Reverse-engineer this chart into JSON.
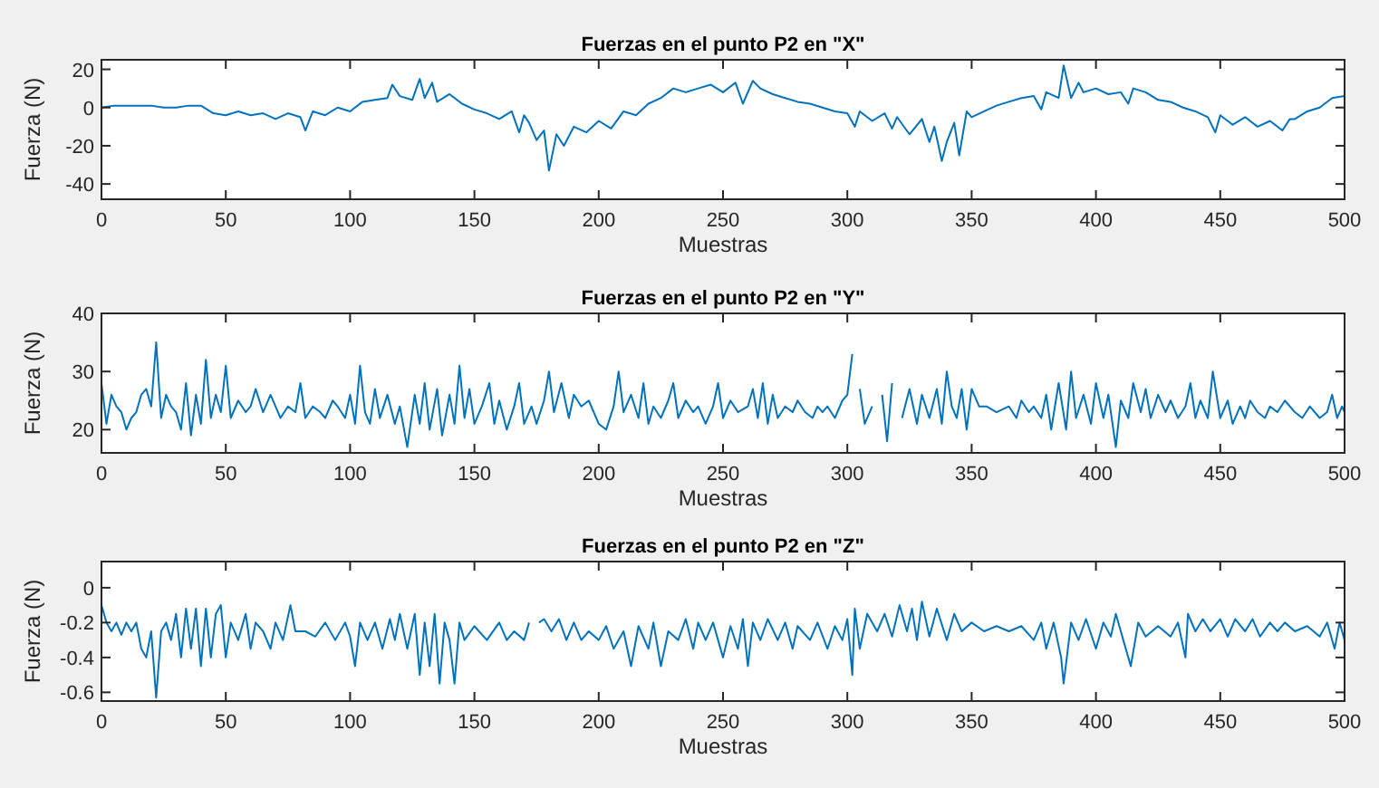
{
  "chart_data": [
    {
      "type": "line",
      "title": "Fuerzas en el punto P2 en \"X\"",
      "xlabel": "Muestras",
      "ylabel": "Fuerza (N)",
      "xlim": [
        0,
        500
      ],
      "xticks": [
        0,
        50,
        100,
        150,
        200,
        250,
        300,
        350,
        400,
        450,
        500
      ],
      "ylim": [
        -48,
        25
      ],
      "yticks": [
        -40,
        -20,
        0,
        20
      ],
      "grid": false,
      "marker": "none",
      "line_style": "solid",
      "series": [
        {
          "color": "#0072bd",
          "x": [
            0,
            5,
            10,
            15,
            20,
            25,
            30,
            35,
            40,
            45,
            50,
            55,
            60,
            65,
            70,
            75,
            80,
            82,
            85,
            90,
            95,
            100,
            105,
            110,
            115,
            117,
            120,
            125,
            128,
            130,
            133,
            135,
            140,
            145,
            150,
            155,
            160,
            165,
            168,
            170,
            172,
            175,
            178,
            180,
            183,
            186,
            190,
            195,
            200,
            205,
            210,
            215,
            220,
            225,
            230,
            235,
            240,
            245,
            250,
            255,
            258,
            262,
            265,
            270,
            275,
            280,
            285,
            290,
            295,
            300,
            303,
            305,
            310,
            315,
            318,
            320,
            325,
            330,
            333,
            335,
            338,
            340,
            343,
            345,
            348,
            350,
            355,
            360,
            365,
            370,
            375,
            378,
            380,
            385,
            387,
            390,
            393,
            395,
            400,
            405,
            410,
            413,
            415,
            420,
            425,
            430,
            435,
            440,
            445,
            448,
            450,
            455,
            460,
            465,
            470,
            475,
            478,
            480,
            485,
            490,
            495,
            500
          ],
          "values": [
            0,
            1,
            1,
            1,
            1,
            0,
            0,
            1,
            1,
            -3,
            -4,
            -2,
            -4,
            -3,
            -6,
            -3,
            -5,
            -12,
            -2,
            -4,
            0,
            -2,
            3,
            4,
            5,
            12,
            6,
            4,
            15,
            5,
            13,
            3,
            7,
            2,
            -1,
            -3,
            -6,
            -2,
            -13,
            -4,
            -8,
            -17,
            -12,
            -33,
            -14,
            -20,
            -10,
            -13,
            -7,
            -11,
            -2,
            -4,
            2,
            5,
            10,
            8,
            10,
            12,
            8,
            13,
            2,
            14,
            10,
            7,
            5,
            3,
            2,
            0,
            -2,
            -3,
            -10,
            -2,
            -7,
            -3,
            -11,
            -5,
            -14,
            -6,
            -18,
            -10,
            -28,
            -18,
            -8,
            -25,
            -2,
            -5,
            -2,
            1,
            3,
            5,
            6,
            -1,
            8,
            5,
            22,
            5,
            13,
            8,
            10,
            7,
            8,
            2,
            10,
            8,
            4,
            3,
            0,
            -2,
            -5,
            -13,
            -4,
            -9,
            -5,
            -10,
            -7,
            -12,
            -6,
            -6,
            -2,
            0,
            5,
            6
          ]
        }
      ]
    },
    {
      "type": "line",
      "title": "Fuerzas en el punto P2 en \"Y\"",
      "xlabel": "Muestras",
      "ylabel": "Fuerza (N)",
      "xlim": [
        0,
        500
      ],
      "xticks": [
        0,
        50,
        100,
        150,
        200,
        250,
        300,
        350,
        400,
        450,
        500
      ],
      "ylim": [
        16,
        40
      ],
      "yticks": [
        20,
        30,
        40
      ],
      "grid": false,
      "marker": "none",
      "line_style": "solid",
      "series": [
        {
          "color": "#0072bd",
          "x": [
            0,
            2,
            4,
            6,
            8,
            10,
            12,
            14,
            16,
            18,
            20,
            22,
            24,
            26,
            28,
            30,
            32,
            34,
            36,
            38,
            40,
            42,
            44,
            46,
            48,
            50,
            52,
            55,
            58,
            60,
            62,
            65,
            68,
            70,
            72,
            75,
            78,
            80,
            82,
            85,
            88,
            90,
            93,
            95,
            98,
            100,
            102,
            104,
            106,
            108,
            110,
            112,
            115,
            118,
            120,
            123,
            126,
            128,
            130,
            132,
            135,
            137,
            140,
            142,
            144,
            146,
            148,
            150,
            153,
            156,
            158,
            160,
            163,
            166,
            168,
            170,
            173,
            175,
            178,
            180,
            182,
            185,
            188,
            190,
            193,
            196,
            200,
            203,
            206,
            208,
            210,
            213,
            216,
            218,
            220,
            222,
            225,
            228,
            230,
            232,
            235,
            238,
            240,
            243,
            246,
            248,
            250,
            253,
            256,
            260,
            262,
            264,
            266,
            268,
            270,
            272,
            275,
            278,
            280,
            283,
            286,
            288,
            290,
            292,
            295,
            298,
            300,
            302,
            303,
            305,
            307,
            310,
            312,
            314,
            316,
            318,
            320,
            322,
            325,
            328,
            330,
            333,
            336,
            338,
            340,
            342,
            344,
            346,
            348,
            350,
            353,
            356,
            360,
            365,
            368,
            370,
            373,
            375,
            378,
            380,
            382,
            385,
            388,
            390,
            392,
            395,
            398,
            400,
            403,
            405,
            408,
            410,
            413,
            415,
            418,
            420,
            422,
            425,
            428,
            430,
            433,
            436,
            438,
            440,
            442,
            445,
            447,
            450,
            453,
            455,
            458,
            460,
            462,
            465,
            468,
            470,
            473,
            476,
            480,
            483,
            486,
            490,
            493,
            495,
            497,
            499,
            500
          ],
          "values": [
            28,
            21,
            26,
            24,
            23,
            20,
            22,
            23,
            26,
            27,
            24,
            35,
            22,
            26,
            24,
            23,
            20,
            28,
            19,
            26,
            21,
            32,
            22,
            26,
            23,
            31,
            22,
            25,
            23,
            24,
            27,
            23,
            26,
            24,
            22,
            24,
            23,
            28,
            22,
            24,
            23,
            22,
            25,
            24,
            22,
            26,
            21,
            31,
            23,
            21,
            27,
            22,
            26,
            21,
            24,
            17,
            26,
            21,
            28,
            20,
            27,
            19,
            26,
            21,
            31,
            22,
            27,
            21,
            24,
            28,
            21,
            25,
            20,
            24,
            28,
            21,
            24,
            21,
            25,
            30,
            23,
            28,
            22,
            26,
            24,
            25,
            21,
            20,
            24,
            30,
            23,
            26,
            22,
            28,
            21,
            24,
            22,
            25,
            28,
            22,
            25,
            23,
            24,
            21,
            24,
            28,
            22,
            25,
            23,
            24,
            27,
            22,
            28,
            21,
            26,
            22,
            24,
            23,
            25,
            23,
            22,
            24,
            23,
            24,
            22,
            25,
            26,
            33,
            null,
            27,
            21,
            24,
            null,
            26,
            18,
            28,
            null,
            22,
            27,
            21,
            26,
            22,
            27,
            21,
            30,
            24,
            22,
            27,
            20,
            27,
            24,
            24,
            23,
            24,
            22,
            25,
            23,
            24,
            22,
            26,
            20,
            28,
            20,
            30,
            22,
            26,
            21,
            28,
            22,
            26,
            17,
            25,
            22,
            28,
            23,
            27,
            22,
            26,
            23,
            25,
            22,
            24,
            28,
            22,
            25,
            22,
            30,
            22,
            25,
            21,
            24,
            22,
            25,
            23,
            22,
            24,
            23,
            25,
            23,
            22,
            24,
            22,
            23,
            26,
            22,
            24,
            23
          ]
        }
      ]
    },
    {
      "type": "line",
      "title": "Fuerzas en el punto P2 en \"Z\"",
      "xlabel": "Muestras",
      "ylabel": "Fuerza (N)",
      "xlim": [
        0,
        500
      ],
      "xticks": [
        0,
        50,
        100,
        150,
        200,
        250,
        300,
        350,
        400,
        450,
        500
      ],
      "ylim": [
        -0.65,
        0.15
      ],
      "yticks": [
        -0.6,
        -0.4,
        -0.2,
        0
      ],
      "grid": false,
      "marker": "none",
      "line_style": "solid",
      "series": [
        {
          "color": "#0072bd",
          "x": [
            0,
            2,
            4,
            6,
            8,
            10,
            12,
            14,
            16,
            18,
            20,
            22,
            24,
            26,
            28,
            30,
            32,
            34,
            36,
            38,
            40,
            42,
            44,
            46,
            48,
            50,
            52,
            55,
            58,
            60,
            62,
            65,
            68,
            70,
            73,
            76,
            78,
            82,
            86,
            90,
            94,
            98,
            100,
            102,
            104,
            107,
            110,
            113,
            116,
            118,
            120,
            123,
            126,
            128,
            130,
            132,
            134,
            136,
            138,
            140,
            142,
            144,
            146,
            150,
            155,
            160,
            163,
            166,
            170,
            172,
            174,
            176,
            178,
            181,
            184,
            187,
            190,
            193,
            196,
            200,
            203,
            206,
            210,
            213,
            216,
            220,
            222,
            225,
            228,
            232,
            235,
            238,
            240,
            243,
            246,
            250,
            253,
            256,
            258,
            260,
            262,
            265,
            268,
            272,
            275,
            278,
            280,
            285,
            288,
            292,
            295,
            298,
            300,
            302,
            303,
            305,
            308,
            312,
            315,
            318,
            321,
            324,
            326,
            328,
            330,
            333,
            336,
            340,
            343,
            346,
            350,
            355,
            360,
            365,
            370,
            375,
            378,
            380,
            383,
            386,
            387,
            390,
            393,
            396,
            400,
            403,
            406,
            408,
            411,
            414,
            417,
            420,
            425,
            430,
            433,
            436,
            437,
            440,
            443,
            446,
            450,
            453,
            456,
            460,
            463,
            466,
            470,
            473,
            476,
            480,
            485,
            490,
            493,
            496,
            498,
            500
          ],
          "values": [
            -0.1,
            -0.2,
            -0.25,
            -0.2,
            -0.27,
            -0.2,
            -0.25,
            -0.2,
            -0.35,
            -0.4,
            -0.25,
            -0.63,
            -0.25,
            -0.2,
            -0.3,
            -0.15,
            -0.4,
            -0.12,
            -0.35,
            -0.12,
            -0.45,
            -0.12,
            -0.4,
            -0.15,
            -0.1,
            -0.4,
            -0.2,
            -0.3,
            -0.15,
            -0.35,
            -0.2,
            -0.25,
            -0.35,
            -0.2,
            -0.3,
            -0.1,
            -0.25,
            -0.25,
            -0.28,
            -0.2,
            -0.3,
            -0.2,
            -0.28,
            -0.45,
            -0.2,
            -0.3,
            -0.2,
            -0.35,
            -0.18,
            -0.3,
            -0.15,
            -0.35,
            -0.15,
            -0.5,
            -0.2,
            -0.45,
            -0.15,
            -0.55,
            -0.2,
            -0.3,
            -0.55,
            -0.2,
            -0.3,
            -0.22,
            -0.3,
            -0.2,
            -0.3,
            -0.25,
            -0.3,
            -0.2,
            null,
            -0.2,
            -0.18,
            -0.25,
            -0.18,
            -0.3,
            -0.2,
            -0.3,
            -0.25,
            -0.3,
            -0.22,
            -0.35,
            -0.25,
            -0.45,
            -0.22,
            -0.35,
            -0.2,
            -0.45,
            -0.25,
            -0.3,
            -0.18,
            -0.35,
            -0.2,
            -0.3,
            -0.2,
            -0.4,
            -0.22,
            -0.35,
            -0.18,
            -0.45,
            -0.2,
            -0.3,
            -0.18,
            -0.3,
            -0.2,
            -0.35,
            -0.22,
            -0.3,
            -0.2,
            -0.35,
            -0.22,
            -0.3,
            -0.18,
            -0.5,
            -0.12,
            -0.35,
            -0.15,
            -0.25,
            -0.15,
            -0.28,
            -0.1,
            -0.25,
            -0.12,
            -0.3,
            -0.08,
            -0.28,
            -0.12,
            -0.3,
            -0.15,
            -0.25,
            -0.2,
            -0.25,
            -0.22,
            -0.25,
            -0.22,
            -0.3,
            -0.2,
            -0.35,
            -0.2,
            -0.4,
            -0.55,
            -0.2,
            -0.3,
            -0.18,
            -0.35,
            -0.2,
            -0.28,
            -0.15,
            -0.3,
            -0.45,
            -0.2,
            -0.28,
            -0.22,
            -0.28,
            -0.2,
            -0.4,
            -0.15,
            -0.25,
            -0.18,
            -0.25,
            -0.18,
            -0.28,
            -0.18,
            -0.25,
            -0.18,
            -0.28,
            -0.2,
            -0.25,
            -0.2,
            -0.25,
            -0.22,
            -0.28,
            -0.2,
            -0.35,
            -0.2,
            -0.3
          ]
        }
      ]
    }
  ]
}
